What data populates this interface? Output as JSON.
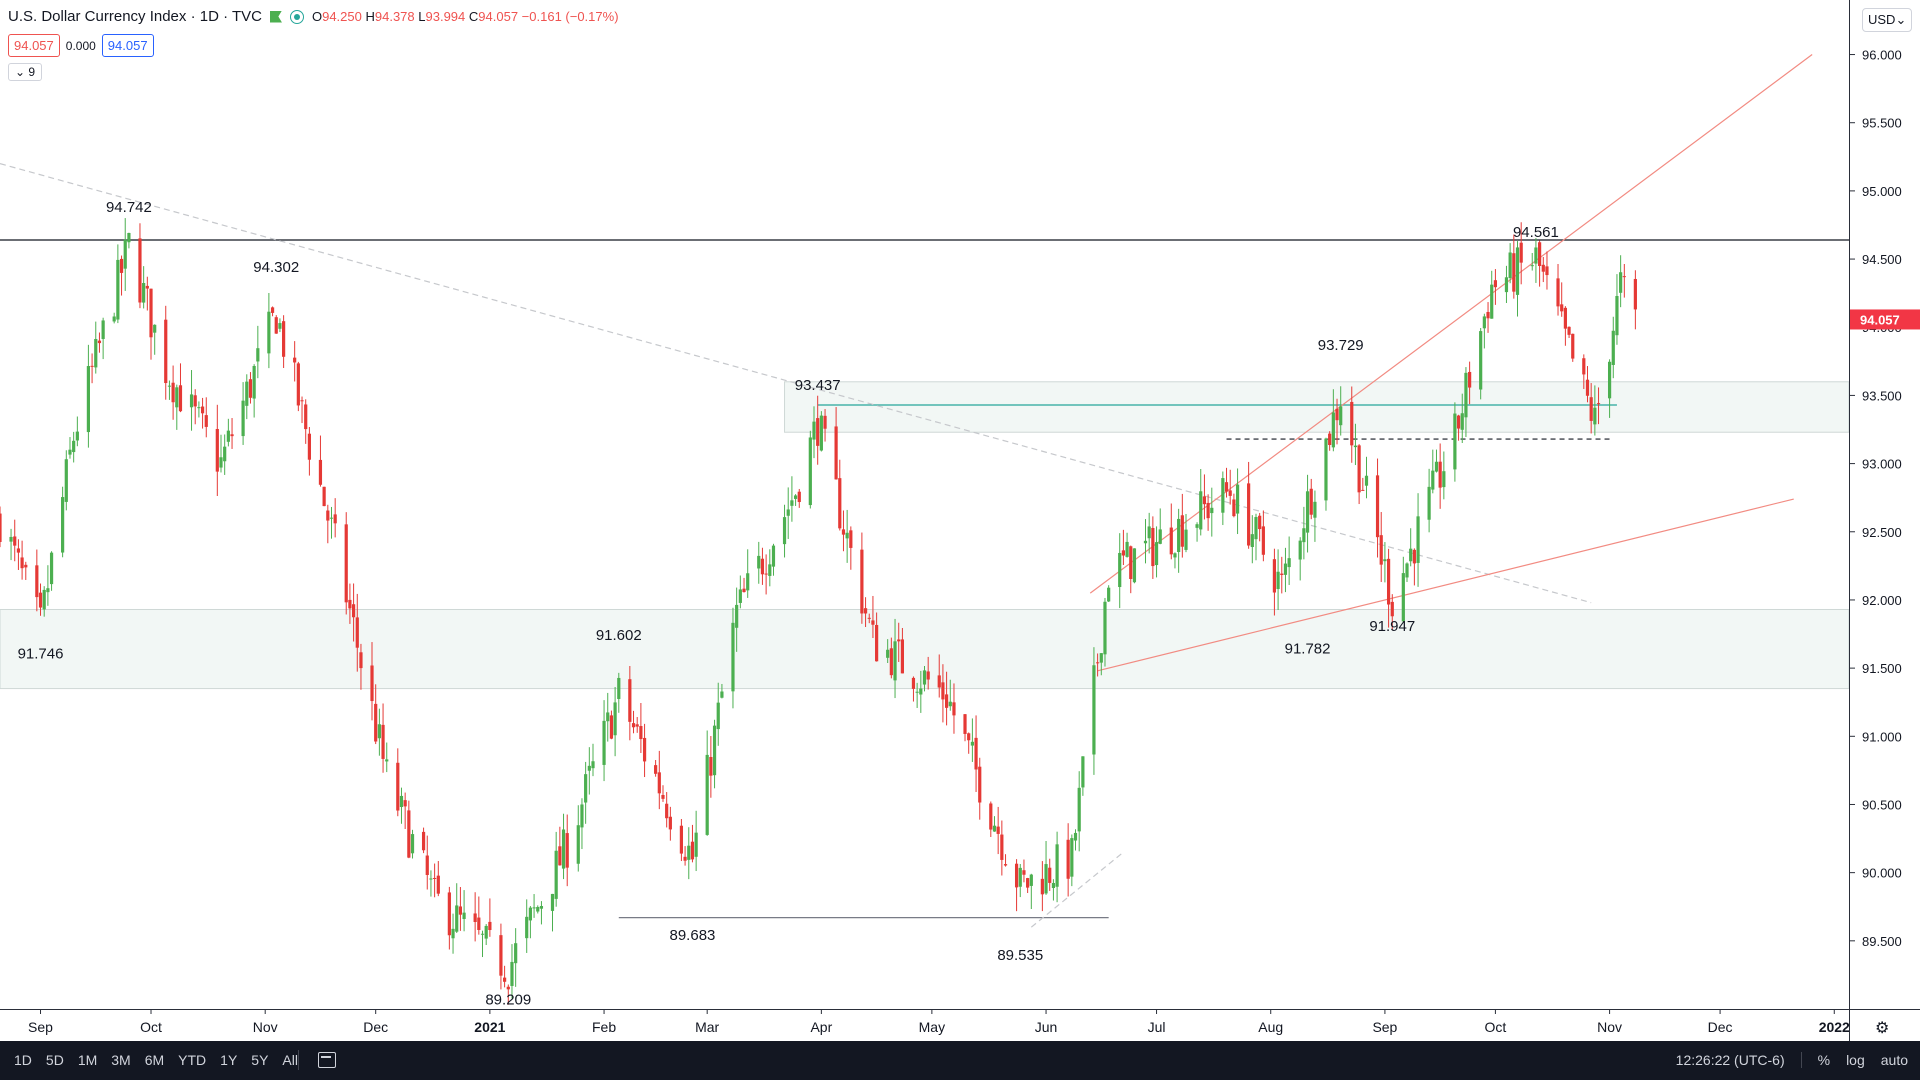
{
  "header": {
    "symbol_title": "U.S. Dollar Currency Index · 1D · TVC",
    "ohlc": {
      "o_label": "O",
      "o": "94.250",
      "h_label": "H",
      "h": "94.378",
      "l_label": "L",
      "l": "93.994",
      "c_label": "C",
      "c": "94.057",
      "change": "−0.161 (−0.17%)"
    },
    "bid": "94.057",
    "spread": "0.000",
    "ask": "94.057",
    "indicators_toggle": "9"
  },
  "price_axis": {
    "currency": "USD",
    "last_price_label": "94.057",
    "ticks": [
      "96.000",
      "95.500",
      "95.000",
      "94.500",
      "94.000",
      "93.500",
      "93.000",
      "92.500",
      "92.000",
      "91.500",
      "91.000",
      "90.500",
      "90.000",
      "89.500"
    ]
  },
  "time_axis": {
    "labels": [
      "Sep",
      "Oct",
      "Nov",
      "Dec",
      "2021",
      "Feb",
      "Mar",
      "Apr",
      "May",
      "Jun",
      "Jul",
      "Aug",
      "Sep",
      "Oct",
      "Nov",
      "Dec",
      "2022"
    ]
  },
  "bottom_bar": {
    "ranges": [
      "1D",
      "5D",
      "1M",
      "3M",
      "6M",
      "YTD",
      "1Y",
      "5Y",
      "All"
    ],
    "time": "12:26:22 (UTC-6)",
    "percent": "%",
    "log": "log",
    "auto": "auto"
  },
  "colors": {
    "up": "#26a69a",
    "up_candle": "#4caf50",
    "down": "#e53935",
    "trendline": "#f28b82",
    "horizontal_teal": "#26a69a",
    "zone": "#e9f2ef",
    "last_price_bg": "#f23645"
  },
  "chart_data": {
    "type": "candlestick",
    "title": "U.S. Dollar Currency Index",
    "interval": "1D",
    "ylim": [
      89.0,
      96.4
    ],
    "y_ticks": [
      89.5,
      90.0,
      90.5,
      91.0,
      91.5,
      92.0,
      92.5,
      93.0,
      93.5,
      94.0,
      94.5,
      95.0,
      95.5,
      96.0
    ],
    "x_range": [
      "2020-08-21",
      "2022-01-05"
    ],
    "price_path": [
      [
        "2020-08-21",
        92.6
      ],
      [
        "2020-09-01",
        91.8
      ],
      [
        "2020-09-10",
        93.2
      ],
      [
        "2020-09-25",
        94.6
      ],
      [
        "2020-10-05",
        93.7
      ],
      [
        "2020-10-20",
        93.0
      ],
      [
        "2020-11-04",
        94.1
      ],
      [
        "2020-11-20",
        92.4
      ],
      [
        "2020-12-04",
        90.7
      ],
      [
        "2020-12-17",
        89.8
      ],
      [
        "2021-01-06",
        89.3
      ],
      [
        "2021-01-22",
        90.2
      ],
      [
        "2021-02-05",
        91.3
      ],
      [
        "2021-02-25",
        90.1
      ],
      [
        "2021-03-09",
        91.9
      ],
      [
        "2021-03-25",
        92.8
      ],
      [
        "2021-03-31",
        93.3
      ],
      [
        "2021-04-15",
        91.7
      ],
      [
        "2021-05-05",
        91.3
      ],
      [
        "2021-05-25",
        89.9
      ],
      [
        "2021-06-08",
        90.1
      ],
      [
        "2021-06-18",
        92.2
      ],
      [
        "2021-06-30",
        92.4
      ],
      [
        "2021-07-21",
        92.8
      ],
      [
        "2021-08-04",
        92.1
      ],
      [
        "2021-08-20",
        93.5
      ],
      [
        "2021-09-03",
        92.0
      ],
      [
        "2021-09-20",
        93.2
      ],
      [
        "2021-09-30",
        94.3
      ],
      [
        "2021-10-12",
        94.5
      ],
      [
        "2021-10-28",
        93.3
      ],
      [
        "2021-11-04",
        94.3
      ],
      [
        "2021-11-08",
        94.057
      ]
    ],
    "last_close": 94.057,
    "annotations": [
      {
        "text": "94.742",
        "date": "2020-09-25",
        "value": 94.742,
        "pos": "above"
      },
      {
        "text": "94.302",
        "date": "2020-11-04",
        "value": 94.302,
        "pos": "above"
      },
      {
        "text": "91.746",
        "date": "2020-09-01",
        "value": 91.746,
        "pos": "below"
      },
      {
        "text": "89.209",
        "date": "2021-01-06",
        "value": 89.209,
        "pos": "below"
      },
      {
        "text": "91.602",
        "date": "2021-02-05",
        "value": 91.602,
        "pos": "above"
      },
      {
        "text": "89.683",
        "date": "2021-02-25",
        "value": 89.683,
        "pos": "below"
      },
      {
        "text": "93.437",
        "date": "2021-03-31",
        "value": 93.437,
        "pos": "above"
      },
      {
        "text": "89.535",
        "date": "2021-05-25",
        "value": 89.535,
        "pos": "below"
      },
      {
        "text": "91.782",
        "date": "2021-08-11",
        "value": 91.782,
        "pos": "below"
      },
      {
        "text": "93.729",
        "date": "2021-08-20",
        "value": 93.729,
        "pos": "above"
      },
      {
        "text": "91.947",
        "date": "2021-09-03",
        "value": 91.947,
        "pos": "below"
      },
      {
        "text": "94.561",
        "date": "2021-10-12",
        "value": 94.561,
        "pos": "above"
      }
    ],
    "drawings": {
      "zones": [
        {
          "from": "2020-08-21",
          "to": "2022-01-05",
          "low": 91.35,
          "high": 91.93
        },
        {
          "from": "2021-03-22",
          "to": "2022-01-05",
          "low": 93.23,
          "high": 93.6
        }
      ],
      "horizontal_lines": [
        {
          "value": 94.64,
          "from": "2020-08-21",
          "to": "2022-01-05",
          "style": "solid",
          "color": "#131722"
        },
        {
          "value": 93.43,
          "from": "2021-03-31",
          "to": "2021-11-03",
          "style": "solid",
          "color": "#26a69a"
        },
        {
          "value": 93.18,
          "from": "2021-07-20",
          "to": "2021-11-02",
          "style": "dashed",
          "color": "#131722"
        },
        {
          "value": 89.67,
          "from": "2021-02-05",
          "to": "2021-06-18",
          "style": "solid",
          "color": "#787b86"
        }
      ],
      "trendlines": [
        {
          "from": [
            "2020-08-21",
            95.2
          ],
          "to": [
            "2021-10-27",
            91.98
          ],
          "style": "dashed",
          "color": "#c6c8cc"
        },
        {
          "from": [
            "2021-06-13",
            92.05
          ],
          "to": [
            "2021-12-26",
            96.0
          ],
          "style": "solid",
          "color": "#f28b82"
        },
        {
          "from": [
            "2021-06-15",
            91.48
          ],
          "to": [
            "2021-12-21",
            92.74
          ],
          "style": "solid",
          "color": "#f28b82"
        },
        {
          "from": [
            "2021-05-28",
            89.6
          ],
          "to": [
            "2021-06-22",
            90.15
          ],
          "style": "dashed",
          "color": "#c6c8cc"
        }
      ]
    }
  }
}
